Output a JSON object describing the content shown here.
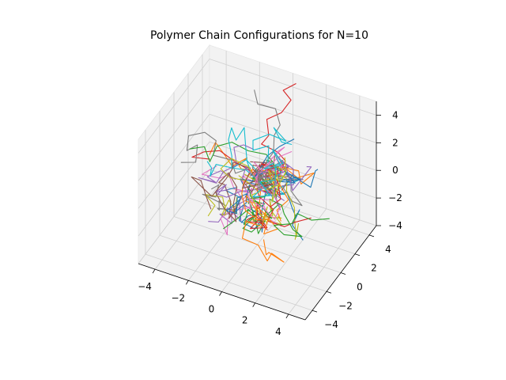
{
  "chart_data": {
    "type": "line",
    "projection": "3d",
    "title": "Polymer Chain Configurations for N=10",
    "xlabel": "",
    "ylabel": "",
    "zlabel": "",
    "xlim": [
      -5,
      5
    ],
    "ylim": [
      -5,
      5
    ],
    "zlim": [
      -4,
      5
    ],
    "x_ticks": [
      -4,
      -2,
      0,
      2,
      4
    ],
    "y_ticks": [
      -4,
      -2,
      0,
      2,
      4
    ],
    "z_ticks": [
      -4,
      -2,
      0,
      2,
      4
    ],
    "x_tick_labels": [
      "−4",
      "−2",
      "0",
      "2",
      "4"
    ],
    "y_tick_labels": [
      "−4",
      "−2",
      "0",
      "2",
      "4"
    ],
    "z_tick_labels": [
      "−4",
      "−2",
      "0",
      "2",
      "4"
    ],
    "grid": true,
    "legend": "none",
    "chains": 50,
    "steps_per_chain": 10,
    "step_length": 1,
    "colors": [
      "#1f77b4",
      "#ff7f0e",
      "#2ca02c",
      "#d62728",
      "#9467bd",
      "#8c564b",
      "#e377c2",
      "#7f7f7f",
      "#bcbd22",
      "#17becf"
    ]
  }
}
